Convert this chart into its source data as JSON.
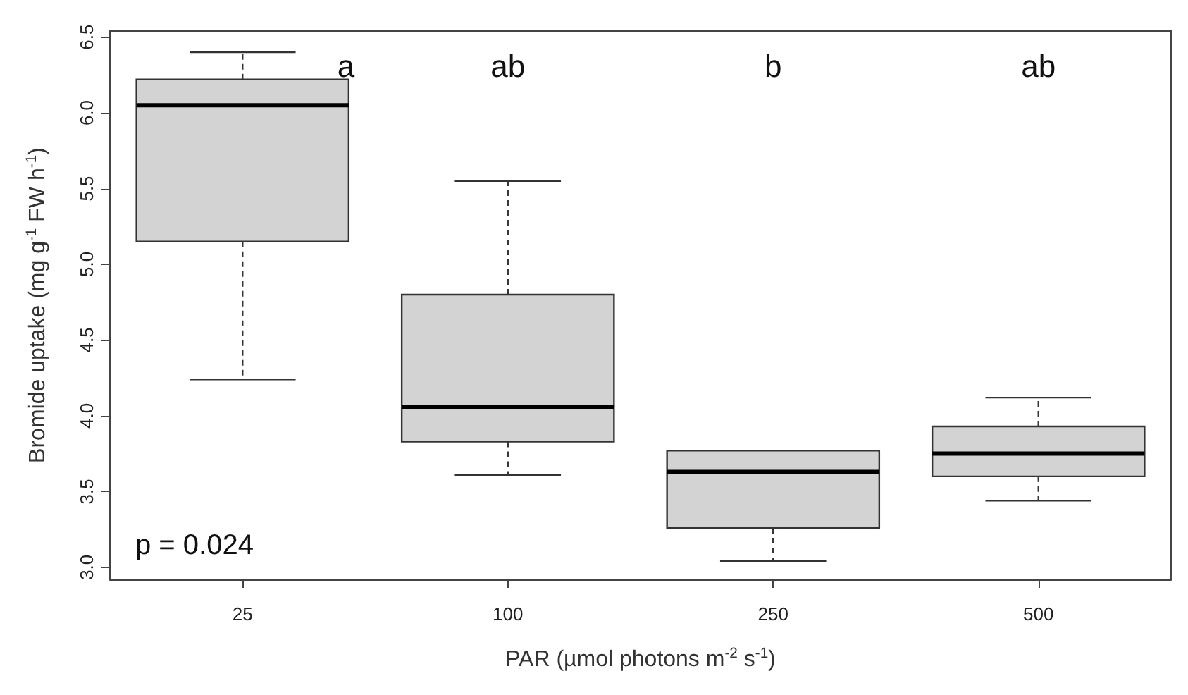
{
  "chart_data": {
    "type": "box",
    "xlabel": "PAR (µmol photons m$^{-2}$ s$^{-1}$)",
    "ylabel": "Bromide uptake (mg g$^{-1}$ FW h$^{-1}$)",
    "categories": [
      "25",
      "100",
      "250",
      "500"
    ],
    "series": [
      {
        "color": "#d3d3d3",
        "boxes": [
          {
            "low": 4.24,
            "q1": 5.15,
            "median": 6.05,
            "q3": 6.22,
            "high": 6.4
          },
          {
            "low": 3.61,
            "q1": 3.83,
            "median": 4.06,
            "q3": 4.8,
            "high": 5.55
          },
          {
            "low": 3.04,
            "q1": 3.26,
            "median": 3.63,
            "q3": 3.77,
            "high": 3.77
          },
          {
            "low": 3.44,
            "q1": 3.6,
            "median": 3.75,
            "q3": 3.93,
            "high": 4.12
          }
        ]
      }
    ],
    "ylim": [
      2.92,
      6.54
    ],
    "yticks": [
      {
        "value": 3,
        "label": "3.0"
      },
      {
        "value": 3.5,
        "label": "3.5"
      },
      {
        "value": 4,
        "label": "4.0"
      },
      {
        "value": 4.5,
        "label": "4.5"
      },
      {
        "value": 5,
        "label": "5.0"
      },
      {
        "value": 5.5,
        "label": "5.5"
      },
      {
        "value": 6,
        "label": "6.0"
      },
      {
        "value": 6.5,
        "label": "6.5"
      }
    ],
    "annotations": [
      "a",
      "ab",
      "b",
      "ab",
      "p = 0.024"
    ]
  }
}
